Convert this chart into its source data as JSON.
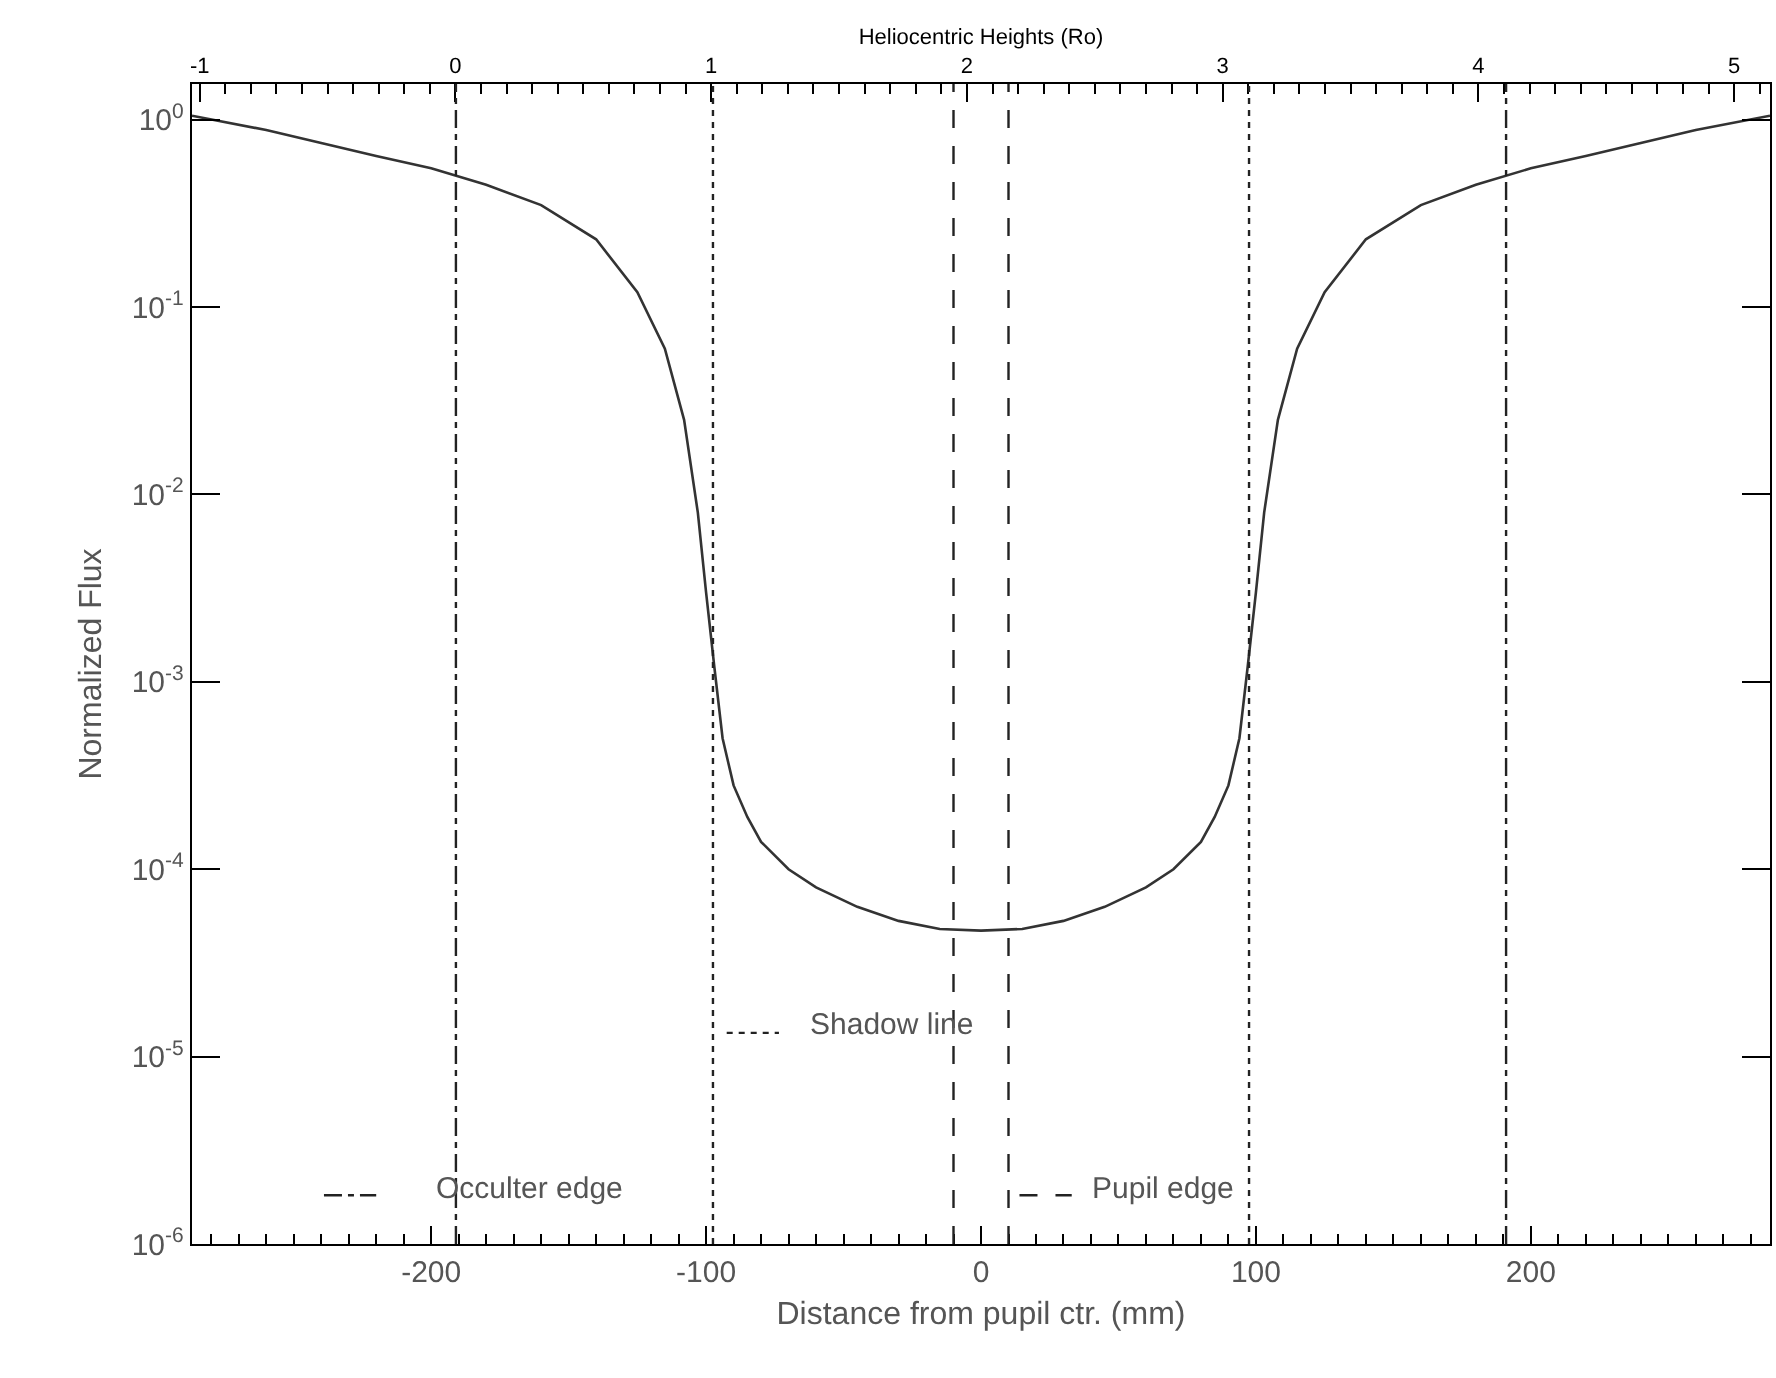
{
  "chart_data": {
    "type": "line",
    "xlabel": "Distance from pupil ctr. (mm)",
    "ylabel": "Normalized Flux",
    "x2label": "Heliocentric Heights (Ro)",
    "x": [
      -287,
      -260,
      -240,
      -220,
      -200,
      -180,
      -160,
      -140,
      -125,
      -115,
      -108,
      -103,
      -100,
      -97,
      -94,
      -90,
      -85,
      -80,
      -70,
      -60,
      -45,
      -30,
      -15,
      0,
      15,
      30,
      45,
      60,
      70,
      80,
      85,
      90,
      94,
      97,
      100,
      103,
      108,
      115,
      125,
      140,
      160,
      180,
      200,
      220,
      240,
      260,
      287
    ],
    "series": [
      {
        "color": "#333333",
        "values": [
          1.05,
          0.88,
          0.75,
          0.64,
          0.55,
          0.45,
          0.35,
          0.23,
          0.12,
          0.06,
          0.025,
          0.008,
          0.003,
          0.0012,
          0.0005,
          0.00028,
          0.00019,
          0.00014,
          0.0001,
          8e-05,
          6.3e-05,
          5.3e-05,
          4.8e-05,
          4.7e-05,
          4.8e-05,
          5.3e-05,
          6.3e-05,
          8e-05,
          0.0001,
          0.00014,
          0.00019,
          0.00028,
          0.0005,
          0.0012,
          0.003,
          0.008,
          0.025,
          0.06,
          0.12,
          0.23,
          0.35,
          0.45,
          0.55,
          0.64,
          0.75,
          0.88,
          1.05
        ]
      }
    ],
    "log": "y",
    "xlim": [
      -287,
      287
    ],
    "xticks": [
      -200,
      -100,
      0,
      100,
      200
    ],
    "x2lim": [
      -1.03,
      5.14
    ],
    "x2ticks": [
      -1,
      0,
      1,
      2,
      3,
      4,
      5
    ],
    "ylim": [
      1e-06,
      1.55
    ],
    "yticks": [
      {
        "value": 1,
        "label": "10$^{0}$"
      },
      {
        "value": 0.1,
        "label": "10$^{-1}$"
      },
      {
        "value": 0.01,
        "label": "10$^{-2}$"
      },
      {
        "value": 0.001,
        "label": "10$^{-3}$"
      },
      {
        "value": 0.0001,
        "label": "10$^{-4}$"
      },
      {
        "value": 1e-05,
        "label": "10$^{-5}$"
      },
      {
        "value": 1e-06,
        "label": "10$^{-6}$"
      }
    ],
    "grid": false,
    "marker": "none",
    "line_style": "solid",
    "ref_lines": [
      {
        "axis": "x",
        "value": -191,
        "label": "Occulter edge",
        "line_style": "dashdot"
      },
      {
        "axis": "x",
        "value": 191,
        "line_style": "dashdot"
      },
      {
        "axis": "x",
        "value": -97.5,
        "label": "Shadow line",
        "line_style": "dotted"
      },
      {
        "axis": "x",
        "value": 97.5,
        "line_style": "dotted"
      },
      {
        "axis": "x",
        "value": -10,
        "line_style": "dashed"
      },
      {
        "axis": "x",
        "value": 10,
        "label": "Pupil edge",
        "line_style": "dashed"
      }
    ]
  }
}
